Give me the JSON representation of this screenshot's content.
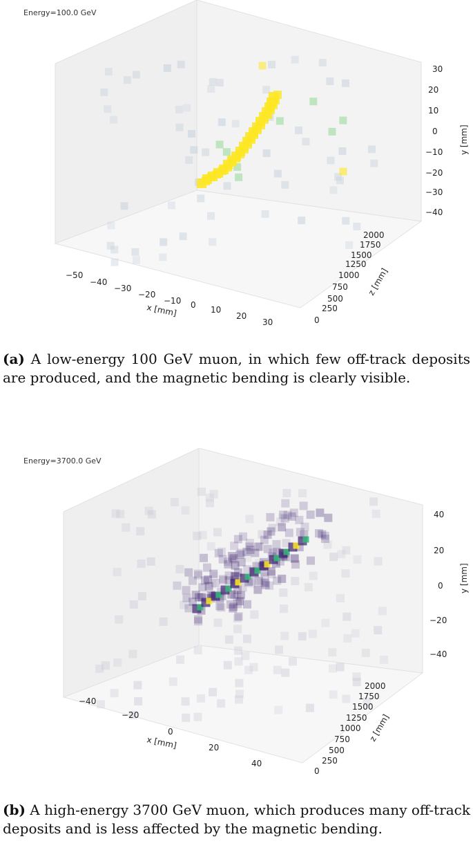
{
  "figures": [
    {
      "id": "a",
      "energy_label": "Energy=100.0 GeV",
      "caption_label": "(a)",
      "caption_text": "A low-energy 100 GeV muon, in which few off-track deposits are produced, and the magnetic bending is clearly visible.",
      "x_axis": {
        "label": "x [mm]",
        "ticks": [
          "−50",
          "−40",
          "−30",
          "−20",
          "−10",
          "0",
          "10",
          "20",
          "30"
        ]
      },
      "y_axis": {
        "label": "y [mm]",
        "ticks": [
          "30",
          "20",
          "10",
          "0",
          "−10",
          "−20",
          "−30",
          "−40"
        ]
      },
      "z_axis": {
        "label": "z [mm]",
        "ticks": [
          "0",
          "250",
          "500",
          "750",
          "1000",
          "1250",
          "1500",
          "1750",
          "2000"
        ]
      },
      "colors": {
        "track": "#fde725",
        "secondary": "#5ec962",
        "faint": "#c9d3de"
      }
    },
    {
      "id": "b",
      "energy_label": "Energy=3700.0 GeV",
      "caption_label": "(b)",
      "caption_text": "A high-energy 3700 GeV muon, which produces many off-track deposits and is less affected by the magnetic bending.",
      "x_axis": {
        "label": "x [mm]",
        "ticks": [
          "−40",
          "−20",
          "0",
          "20",
          "40"
        ]
      },
      "y_axis": {
        "label": "y [mm]",
        "ticks": [
          "40",
          "20",
          "0",
          "−20",
          "−40"
        ]
      },
      "z_axis": {
        "label": "z [mm]",
        "ticks": [
          "0",
          "250",
          "500",
          "750",
          "1000",
          "1250",
          "1500",
          "1750",
          "2000"
        ]
      },
      "colors": {
        "track": "#fde725",
        "core": "#35b779",
        "halo": "#3b1f6e",
        "faint": "#c9c9d6"
      }
    }
  ]
}
